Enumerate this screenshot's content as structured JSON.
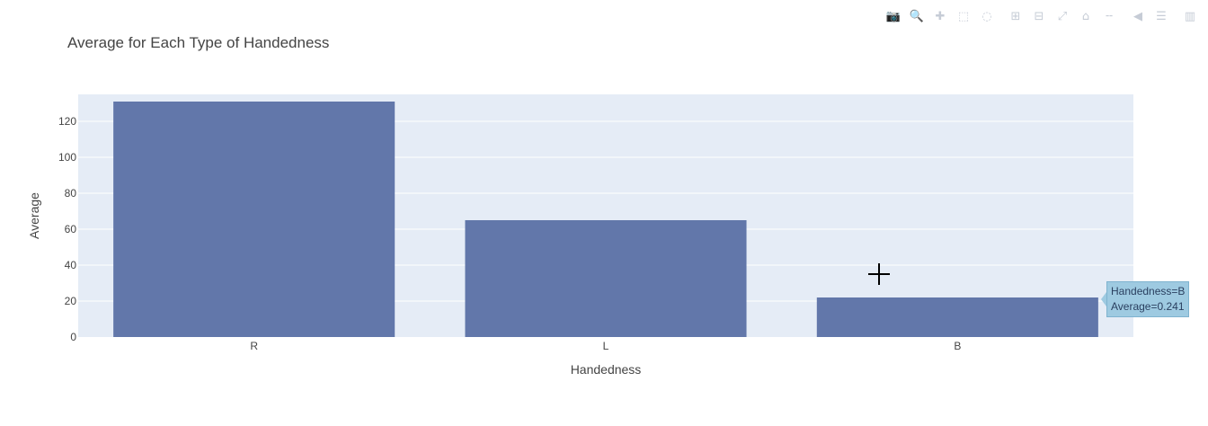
{
  "modebar": {
    "buttons": [
      {
        "name": "download-plot-icon",
        "glyph": "📷"
      },
      {
        "name": "zoom-icon",
        "glyph": "🔍"
      },
      {
        "name": "pan-icon",
        "glyph": "✚"
      },
      {
        "name": "box-select-icon",
        "glyph": "⬚"
      },
      {
        "name": "lasso-select-icon",
        "glyph": "◌"
      },
      {
        "name": "zoom-in-icon",
        "glyph": "⊞"
      },
      {
        "name": "zoom-out-icon",
        "glyph": "⊟"
      },
      {
        "name": "autoscale-icon",
        "glyph": "⤢"
      },
      {
        "name": "reset-axes-icon",
        "glyph": "⌂"
      },
      {
        "name": "spike-lines-icon",
        "glyph": "╌"
      },
      {
        "name": "hover-closest-icon",
        "glyph": "◀"
      },
      {
        "name": "hover-compare-icon",
        "glyph": "☰"
      },
      {
        "name": "plotly-logo-icon",
        "glyph": "▥"
      }
    ]
  },
  "chart_data": {
    "type": "bar",
    "title": "Average for Each Type of Handedness",
    "xlabel": "Handedness",
    "ylabel": "Average",
    "categories": [
      "R",
      "L",
      "B"
    ],
    "values": [
      131,
      65,
      22
    ],
    "ylim": [
      0,
      135
    ],
    "yticks": [
      0,
      20,
      40,
      60,
      80,
      100,
      120
    ],
    "grid": true,
    "bar_color": "#636efa",
    "bar_display_color": "#6277aa",
    "plot_bg": "#e5ecf6"
  },
  "hover": {
    "line1": "Handedness=B",
    "line2": "Average=0.241"
  }
}
